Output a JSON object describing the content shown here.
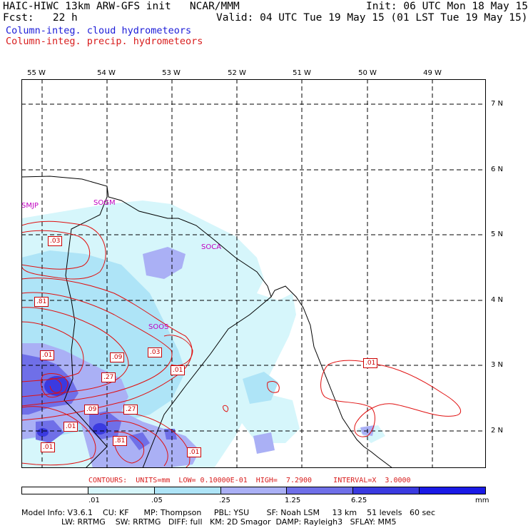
{
  "header": {
    "line1_left": "HAIC-HIWC 13km ARW-GFS init   NCAR/MMM",
    "line1_right": "Init: 06 UTC Mon 18 May 15",
    "line2_left": "Fcst:   22 h",
    "line2_right": "Valid: 04 UTC Tue 19 May 15 (01 LST Tue 19 May 15)",
    "field1": "Column-integ. cloud hydrometeors",
    "field2": "Column-integ. precip. hydrometeors"
  },
  "colors": {
    "cloud_field": "#1c1cd8",
    "precip_field": "#d81c1c",
    "station": "#c000c0"
  },
  "map": {
    "longitudes": [
      "55 W",
      "54 W",
      "53 W",
      "52 W",
      "51 W",
      "50 W",
      "49 W"
    ],
    "latitudes": [
      "7 N",
      "6 N",
      "5 N",
      "4 N",
      "3 N",
      "2 N"
    ],
    "stations": [
      "SMJP",
      "SOGM",
      "SOCA",
      "SOOS"
    ],
    "contour_labels": [
      ".03",
      ".81",
      ".01",
      ".09",
      ".03",
      ".27",
      ".01",
      ".09",
      ".27",
      ".01",
      ".81",
      ".01",
      ".01",
      ".01"
    ]
  },
  "contours_info": "CONTOURS:  UNITS=mm  LOW= 0.10000E-01  HIGH=  7.2900     INTERVAL=X  3.0000",
  "colorbar": {
    "labels": [
      ".01",
      ".05",
      ".25",
      "1.25",
      "6.25",
      "mm"
    ],
    "colors": [
      "#ffffff",
      "#d6f6fb",
      "#aee4f7",
      "#aab0f5",
      "#6f6fe8",
      "#3a3ae0",
      "#1a1ae6"
    ]
  },
  "footer": {
    "line1": "Model Info: V3.6.1    CU: KF      MP: Thompson     PBL: YSU       SF: Noah LSM     13 km    51 levels   60 sec",
    "line2": "                LW: RRTMG    SW: RRTMG   DIFF: full   KM: 2D Smagor  DAMP: Rayleigh3   SFLAY: MM5"
  }
}
